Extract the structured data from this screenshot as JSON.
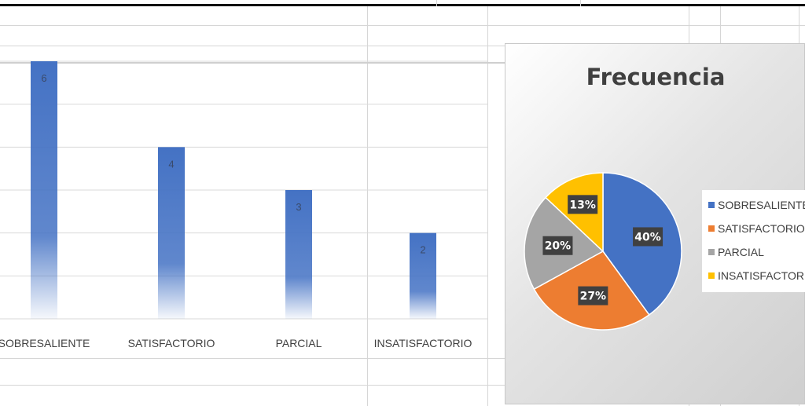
{
  "chart_data": [
    {
      "type": "bar",
      "categories": [
        "SOBRESALIENTE",
        "SATISFACTORIO",
        "PARCIAL",
        "INSATISFACTORIO"
      ],
      "values": [
        6,
        4,
        3,
        2
      ],
      "title": "",
      "xlabel": "",
      "ylabel": "",
      "ylim": [
        0,
        6
      ],
      "grid": true,
      "color": "#4472C4"
    },
    {
      "type": "pie",
      "title": "Frecuencia",
      "categories": [
        "SOBRESALIENTE",
        "SATISFACTORIO",
        "PARCIAL",
        "INSATISFACTORIO"
      ],
      "values": [
        40,
        27,
        20,
        13
      ],
      "value_labels": [
        "40%",
        "27%",
        "20%",
        "13%"
      ],
      "colors": [
        "#4472C4",
        "#ED7D31",
        "#A5A5A5",
        "#FFC000"
      ],
      "legend_position": "right"
    }
  ]
}
